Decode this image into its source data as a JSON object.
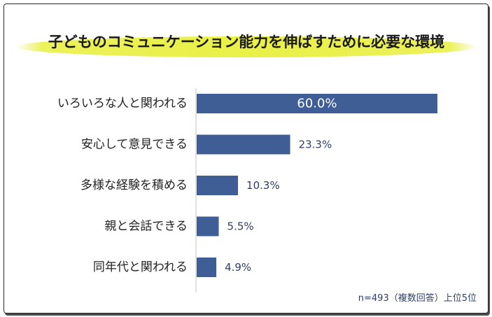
{
  "chart_data": {
    "type": "bar",
    "orientation": "horizontal",
    "title": "子どものコミュニケーション能力を伸ばすために必要な環境",
    "categories": [
      "いろいろな人と関われる",
      "安心して意見できる",
      "多様な経験を積める",
      "親と会話できる",
      "同年代と関われる"
    ],
    "values": [
      60.0,
      23.3,
      10.3,
      5.5,
      4.9
    ],
    "value_labels": [
      "60.0%",
      "23.3%",
      "10.3%",
      "5.5%",
      "4.9%"
    ],
    "xlim": [
      0,
      60
    ],
    "grid": false,
    "legend": "none",
    "note": "n=493（複数回答）上位5位",
    "colors": {
      "bar": "#3f5e96",
      "label_on_bar": "#ffffff",
      "label_outside": "#2e3f66",
      "category_text": "#222222",
      "highlight": "#e8ef3c"
    }
  }
}
